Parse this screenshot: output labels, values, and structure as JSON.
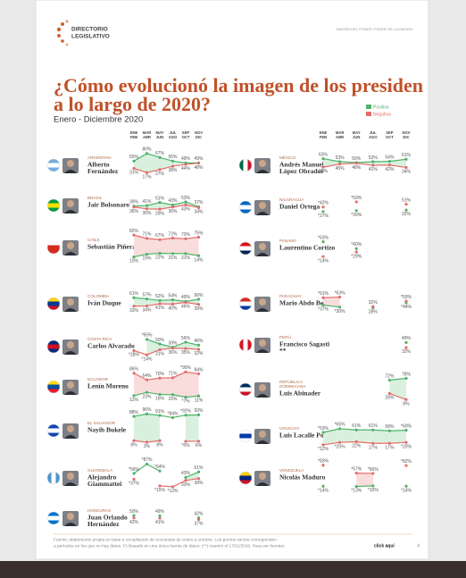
{
  "header": {
    "logo": [
      "DIRECTORIO",
      "LEGISLATIVO"
    ],
    "tagline": "IMAGEN DEL PODER: PODER DE LA IMAGEN"
  },
  "chart_data": {
    "type": "line",
    "title": [
      "¿Cómo evolucionó la imagen de los presiden",
      "a lo largo de 2020?"
    ],
    "subtitle": "Enero - Diciembre 2020",
    "legend": [
      {
        "name": "Positiva",
        "color": "#4fb36a"
      },
      {
        "name": "Negativa",
        "color": "#e36d6b"
      }
    ],
    "categories": [
      [
        "ENE",
        "FEB"
      ],
      [
        "MAR",
        "ABR"
      ],
      [
        "MAY",
        "JUN"
      ],
      [
        "JUL",
        "AGO"
      ],
      [
        "SEP",
        "OCT"
      ],
      [
        "NOV",
        "DIC"
      ]
    ],
    "ylim": [
      0,
      100
    ],
    "panels": [
      {
        "country": [
          "ARGENTINA"
        ],
        "name": [
          "Alberto",
          "Fernández"
        ],
        "series": [
          {
            "values": [
              55,
              80,
              67,
              55,
              49,
              49
            ],
            "value_labels": [
              "55%",
              "80%",
              "67%",
              "55%",
              "49%",
              "49%"
            ]
          },
          {
            "values": [
              31,
              17,
              27,
              38,
              44,
              48
            ],
            "value_labels": [
              "31%",
              "17%",
              "27%",
              "38%",
              "44%",
              "48%"
            ]
          }
        ]
      },
      {
        "country": [
          "BRASIL"
        ],
        "name": [
          "Jair Bolsonaro"
        ],
        "series": [
          {
            "values": [
              39,
              41,
              51,
              43,
              53,
              37
            ],
            "value_labels": [
              "39%",
              "41%",
              "51%",
              "43%",
              "53%",
              "37%"
            ]
          },
          {
            "values": [
              36,
              30,
              29,
              36,
              43,
              34
            ],
            "value_labels": [
              "36%",
              "30%",
              "29%",
              "36%",
              "43%",
              "34%"
            ]
          }
        ]
      },
      {
        "country": [
          "CHILE"
        ],
        "name": [
          "Sebastián Piñera"
        ],
        "series": [
          {
            "values": [
              10,
              19,
              22,
              21,
              21,
              14
            ],
            "value_labels": [
              "10%",
              "19%",
              "22%",
              "21%",
              "21%",
              "14%"
            ]
          },
          {
            "values": [
              82,
              71,
              67,
              72,
              70,
              75
            ],
            "value_labels": [
              "82%",
              "71%",
              "67%",
              "72%",
              "70%",
              "75%"
            ]
          }
        ]
      },
      {
        "country": [
          "COLOMBIA"
        ],
        "name": [
          "Iván Duque"
        ],
        "series": [
          {
            "values": [
              61,
              57,
              52,
              54,
              49,
              56
            ],
            "value_labels": [
              "61%",
              "57%",
              "52%",
              "54%",
              "49%",
              "56%"
            ]
          },
          {
            "values": [
              33,
              34,
              41,
              40,
              46,
              39
            ],
            "value_labels": [
              "33%",
              "34%",
              "41%",
              "40%",
              "46%",
              "39%"
            ]
          }
        ]
      },
      {
        "country": [
          "COSTA RICA"
        ],
        "name": [
          "Carlos Alvarado"
        ],
        "series": [
          {
            "values": [
              null,
              65,
              50,
              39,
              56,
              46
            ],
            "value_labels": [
              null,
              "*65%",
              "50%",
              "39%",
              "56%",
              "46%"
            ]
          },
          {
            "values": [
              28,
              14,
              31,
              36,
              35,
              32
            ],
            "value_labels": [
              "*28%",
              "*14%",
              "31%",
              "36%",
              "35%",
              "32%"
            ]
          }
        ]
      },
      {
        "country": [
          "ECUADOR"
        ],
        "name": [
          "Lenín Moreno"
        ],
        "series": [
          {
            "values": [
              12,
              23,
              16,
              15,
              7,
              11
            ],
            "value_labels": [
              "12%",
              "23%",
              "16%",
              "15%",
              "*7%",
              "11%"
            ]
          },
          {
            "values": [
              86,
              64,
              70,
              71,
              90,
              84
            ],
            "value_labels": [
              "86%",
              "64%",
              "70%",
              "71%",
              "*90%",
              "84%"
            ]
          }
        ]
      },
      {
        "country": [
          "EL SALVADOR"
        ],
        "name": [
          "Nayib Bukele"
        ],
        "series": [
          {
            "values": [
              88,
              96,
              91,
              84,
              92,
              93
            ],
            "value_labels": [
              "88%",
              "96%",
              "91%",
              "*84%",
              "*92%",
              "93%"
            ]
          },
          {
            "values": [
              8,
              3,
              8,
              null,
              6,
              6
            ],
            "value_labels": [
              "8%",
              "3%",
              "8%",
              null,
              "*6%",
              "6%"
            ]
          }
        ]
      },
      {
        "country": [
          "GUATEMALA"
        ],
        "name": [
          "Alejandro",
          "Giammattei"
        ],
        "series": [
          {
            "values": [
              56,
              87,
              64,
              null,
              43,
              61
            ],
            "value_labels": [
              "*56%",
              "*87%",
              "*64%",
              null,
              "43%",
              "61%"
            ]
          },
          {
            "values": [
              37,
              null,
              15,
              12,
              33,
              39
            ],
            "value_labels": [
              "*37%",
              null,
              "*15%",
              "*12%",
              "33%",
              "39%"
            ]
          }
        ]
      },
      {
        "country": [
          "HONDURAS"
        ],
        "name": [
          "Juan Orlando",
          "Hernández"
        ],
        "series": [
          {
            "values": [
              50,
              null,
              49,
              null,
              null,
              42
            ],
            "value_labels": [
              "50%",
              null,
              "49%",
              null,
              null,
              "42%"
            ]
          },
          {
            "values": [
              42,
              null,
              41,
              null,
              null,
              37
            ],
            "value_labels": [
              "42%",
              null,
              "41%",
              null,
              null,
              "37%"
            ]
          }
        ]
      },
      {
        "country": [
          "MÉXICO"
        ],
        "name": [
          "Andrés Manuel",
          "López Obrador"
        ],
        "series": [
          {
            "values": [
              63,
              53,
              50,
              53,
              54,
              61
            ],
            "value_labels": [
              "63%",
              "53%",
              "50%",
              "53%",
              "54%",
              "61%"
            ]
          },
          {
            "values": [
              35,
              45,
              48,
              41,
              42,
              34
            ],
            "value_labels": [
              "35%",
              "45%",
              "48%",
              "41%",
              "42%",
              "34%"
            ]
          }
        ]
      },
      {
        "country": [
          "NICARAGUA"
        ],
        "name": [
          "Daniel Ortega"
        ],
        "series": [
          {
            "values": [
              27,
              null,
              30,
              null,
              null,
              32
            ],
            "value_labels": [
              "*27%",
              null,
              "*30%",
              null,
              null,
              "32%"
            ]
          },
          {
            "values": [
              42,
              null,
              59,
              null,
              null,
              51
            ],
            "value_labels": [
              "*42%",
              null,
              "*59%",
              null,
              null,
              "51%"
            ]
          }
        ]
      },
      {
        "country": [
          "PANAMÁ"
        ],
        "name": [
          "Laurentino Cortizo"
        ],
        "series": [
          {
            "values": [
              63,
              null,
              40,
              null,
              null,
              null
            ],
            "value_labels": [
              "*63%",
              null,
              "*40%",
              null,
              null,
              null
            ]
          },
          {
            "values": [
              14,
              null,
              29,
              null,
              null,
              null
            ],
            "value_labels": [
              "*14%",
              null,
              "*29%",
              null,
              null,
              null
            ]
          }
        ]
      },
      {
        "country": [
          "PARAGUAY"
        ],
        "name": [
          "Mario Abdo Benítez"
        ],
        "series": [
          {
            "values": [
              37,
              30,
              null,
              28,
              null,
              44
            ],
            "value_labels": [
              "*37%",
              "*30%",
              null,
              "28%",
              null,
              "*44%"
            ]
          },
          {
            "values": [
              61,
              63,
              null,
              32,
              null,
              50
            ],
            "value_labels": [
              "*61%",
              "*63%",
              null,
              "32%",
              null,
              "*50%"
            ]
          }
        ]
      },
      {
        "country": [
          "PERÚ"
        ],
        "name": [
          "Francisco Sagasti",
          "**"
        ],
        "series": [
          {
            "values": [
              null,
              null,
              null,
              null,
              null,
              49
            ],
            "value_labels": [
              null,
              null,
              null,
              null,
              null,
              "49%"
            ]
          },
          {
            "values": [
              null,
              null,
              null,
              null,
              null,
              32
            ],
            "value_labels": [
              null,
              null,
              null,
              null,
              null,
              "32%"
            ]
          }
        ]
      },
      {
        "country": [
          "REPÚBLICA",
          "DOMINICANA"
        ],
        "name": [
          "Luis Abinader"
        ],
        "series": [
          {
            "values": [
              null,
              null,
              null,
              null,
              72,
              78
            ],
            "value_labels": [
              null,
              null,
              null,
              null,
              "72%",
              "78%"
            ]
          },
          {
            "values": [
              null,
              null,
              null,
              null,
              28,
              8
            ],
            "value_labels": [
              null,
              null,
              null,
              null,
              "28%",
              "8%"
            ]
          }
        ]
      },
      {
        "country": [
          "URUGUAY"
        ],
        "name": [
          "Luis Lacalle Pou"
        ],
        "series": [
          {
            "values": [
              53,
              65,
              61,
              61,
              58,
              60
            ],
            "value_labels": [
              "*53%",
              "*65%",
              "61%",
              "61%",
              "58%",
              "*60%"
            ]
          },
          {
            "values": [
              12,
              20,
              22,
              17,
              17,
              20
            ],
            "value_labels": [
              "*12%",
              "*20%",
              "22%",
              "17%",
              "17%",
              "*20%"
            ]
          }
        ]
      },
      {
        "country": [
          "VENEZUELA"
        ],
        "name": [
          "Nicolás Maduro"
        ],
        "series": [
          {
            "values": [
              14,
              null,
              13,
              15,
              null,
              14
            ],
            "value_labels": [
              "*14%",
              null,
              "*13%",
              "*15%",
              null,
              "*14%"
            ]
          },
          {
            "values": [
              83,
              null,
              57,
              56,
              null,
              82
            ],
            "value_labels": [
              "*83%",
              null,
              "*57%",
              "*56%",
              null,
              "*82%"
            ]
          }
        ]
      }
    ]
  },
  "footer": {
    "lines": [
      "Fuente: elaboración propia en base a recopilación de encuestas de enero a octubre. Los puntos vacíos corresponden",
      "a períodos en los que no hay datos. (*) Basado en una única fuente de datos. (**) Asumió el 17/11/2020. Para ver fuentes:"
    ],
    "link": "click aquí",
    "page": "4"
  }
}
